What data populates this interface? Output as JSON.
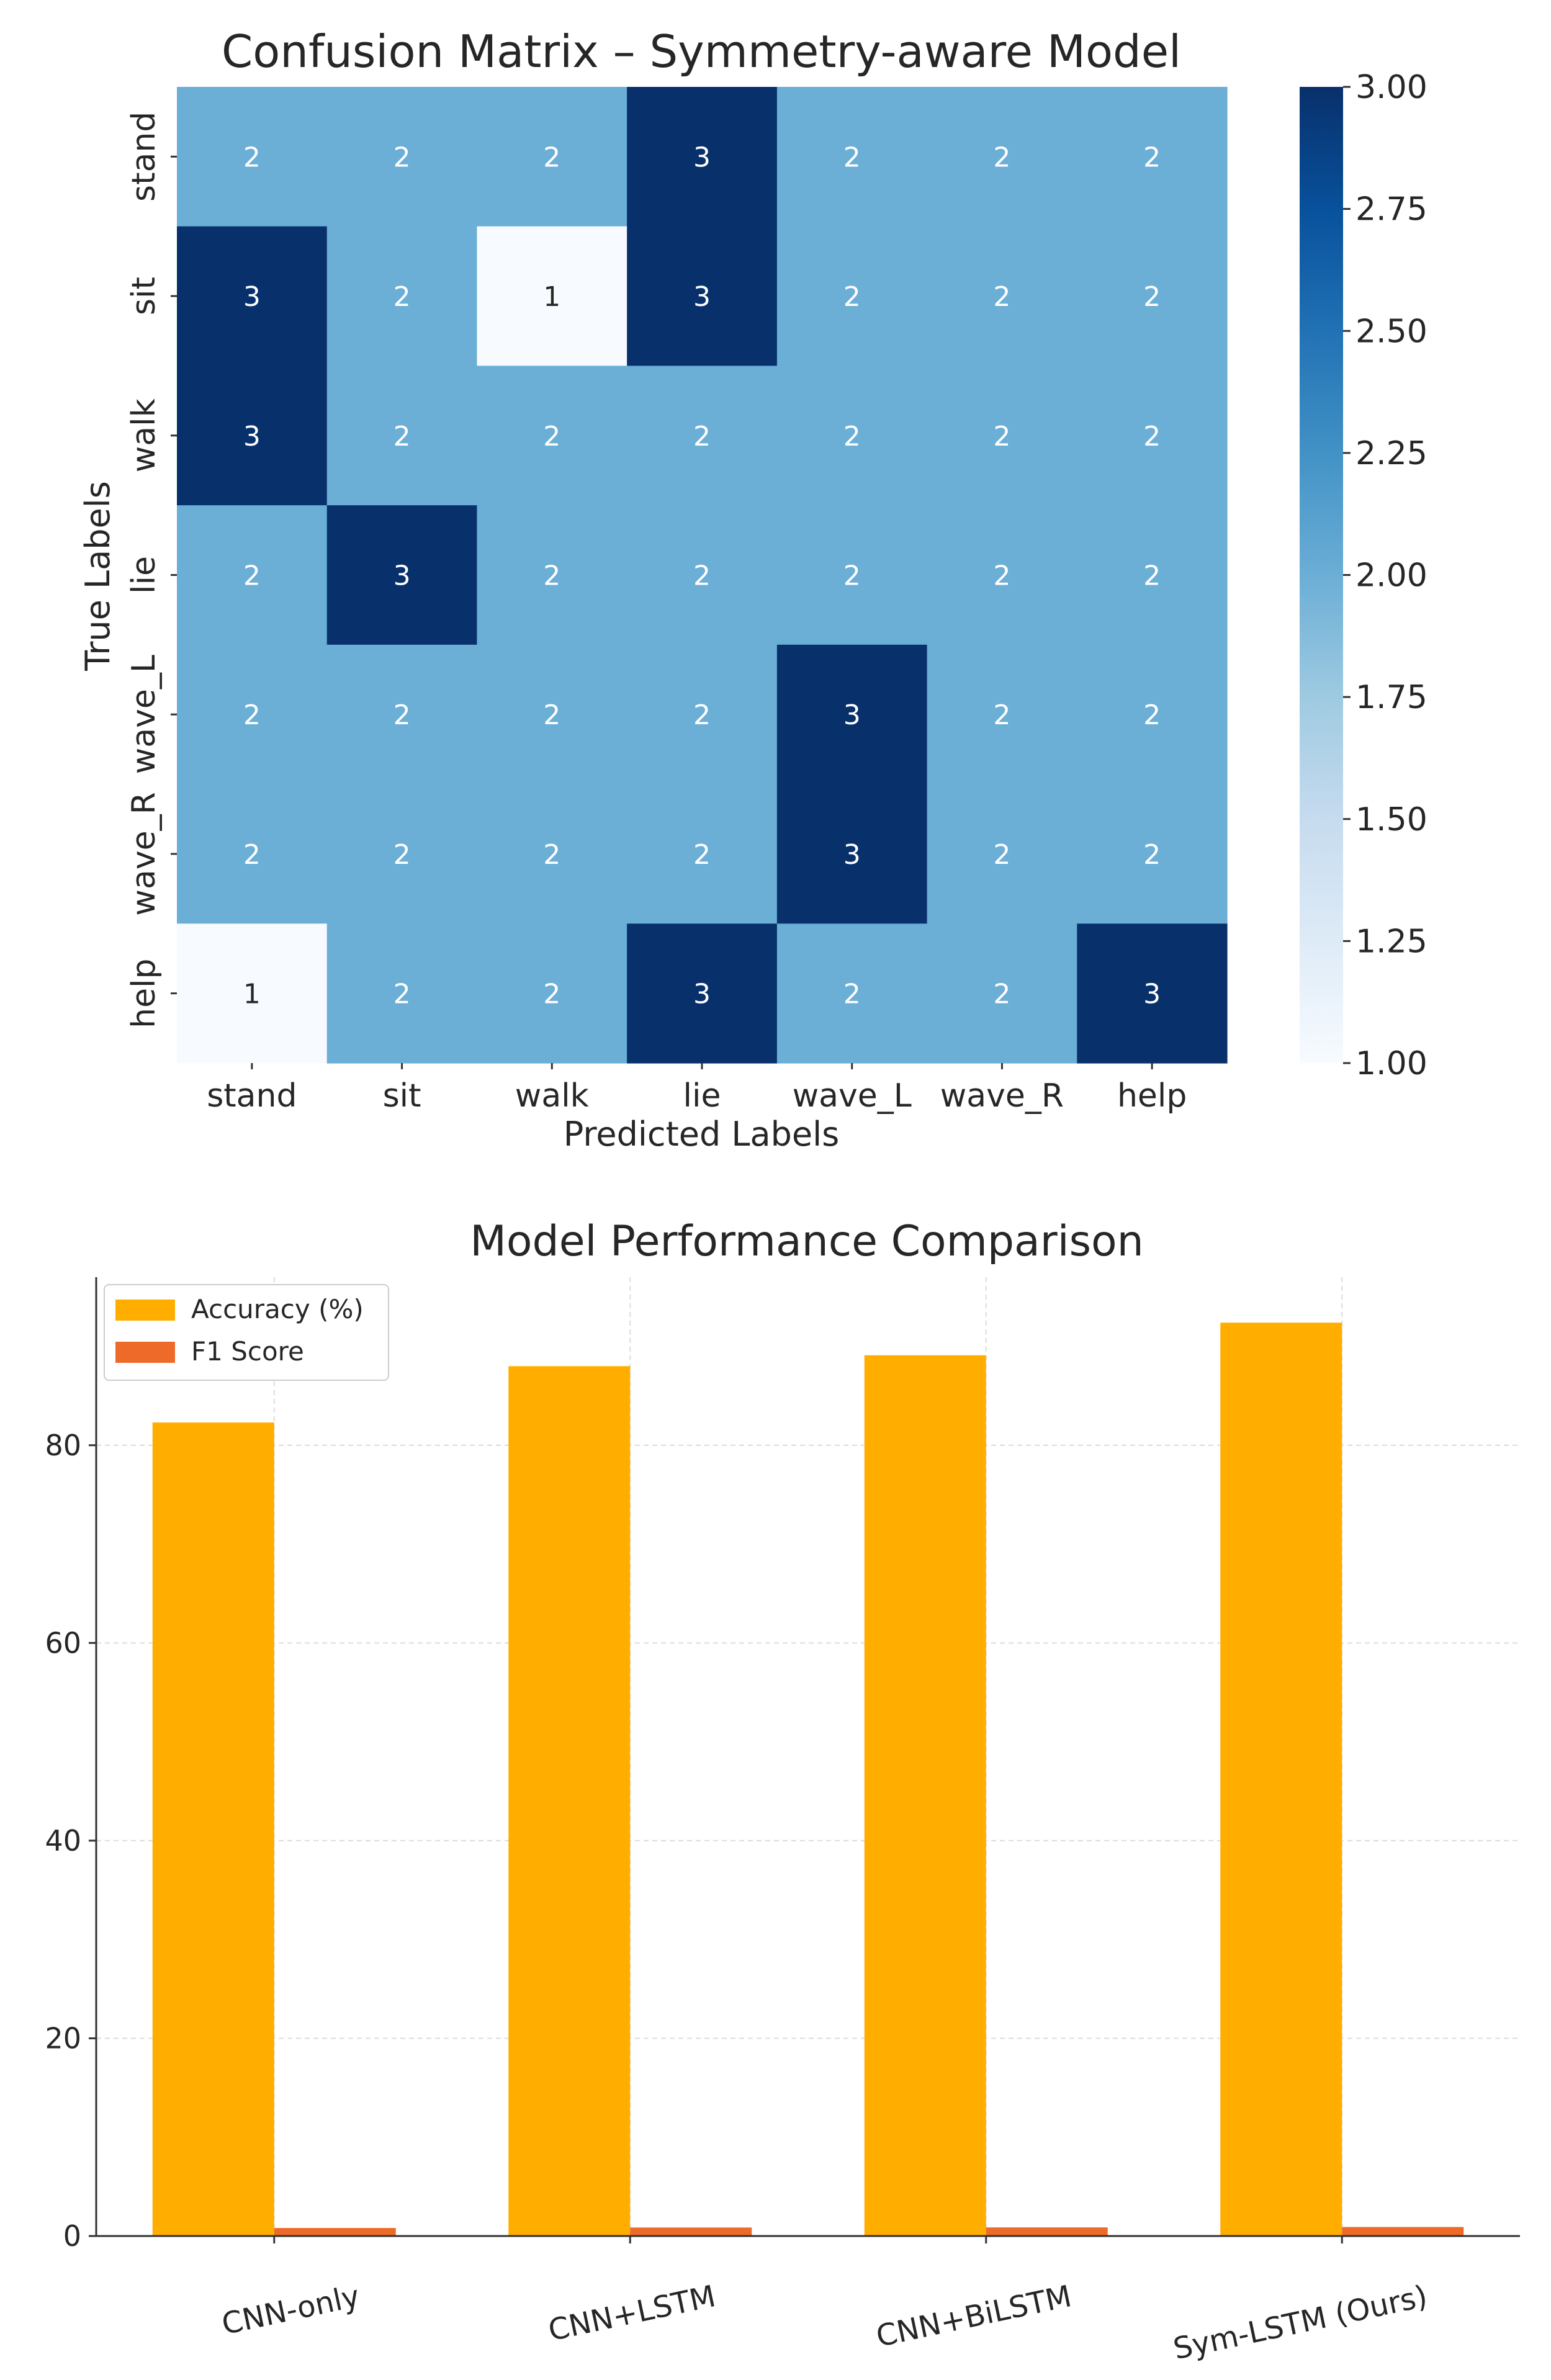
{
  "chart_data": [
    {
      "type": "heatmap",
      "title": "Confusion Matrix – Symmetry-aware Model",
      "xlabel": "Predicted Labels",
      "ylabel": "True Labels",
      "x_categories": [
        "stand",
        "sit",
        "walk",
        "lie",
        "wave_L",
        "wave_R",
        "help"
      ],
      "y_categories": [
        "stand",
        "sit",
        "walk",
        "lie",
        "wave_L",
        "wave_R",
        "help"
      ],
      "values": [
        [
          2,
          2,
          2,
          3,
          2,
          2,
          2
        ],
        [
          3,
          2,
          1,
          3,
          2,
          2,
          2
        ],
        [
          3,
          2,
          2,
          2,
          2,
          2,
          2
        ],
        [
          2,
          3,
          2,
          2,
          2,
          2,
          2
        ],
        [
          2,
          2,
          2,
          2,
          3,
          2,
          2
        ],
        [
          2,
          2,
          2,
          2,
          3,
          2,
          2
        ],
        [
          1,
          2,
          2,
          3,
          2,
          2,
          3
        ]
      ],
      "colorbar": {
        "range": [
          1.0,
          3.0
        ],
        "ticks": [
          "1.00",
          "1.25",
          "1.50",
          "1.75",
          "2.00",
          "2.25",
          "2.50",
          "2.75",
          "3.00"
        ],
        "colormap": "Blues"
      }
    },
    {
      "type": "bar",
      "title": "Model Performance Comparison",
      "categories": [
        "CNN-only",
        "CNN+LSTM",
        "CNN+BiLSTM",
        "Sym-LSTM (Ours)"
      ],
      "series": [
        {
          "name": "Accuracy (%)",
          "values": [
            82.3,
            88.0,
            89.1,
            92.4
          ],
          "color": "#FFAE00"
        },
        {
          "name": "F1 Score",
          "values": [
            0.81,
            0.86,
            0.87,
            0.91
          ],
          "color": "#EE6A28"
        }
      ],
      "ylim": [
        0,
        97
      ],
      "yticks": [
        0,
        20,
        40,
        60,
        80
      ],
      "grid": true,
      "legend": "top-left"
    }
  ]
}
